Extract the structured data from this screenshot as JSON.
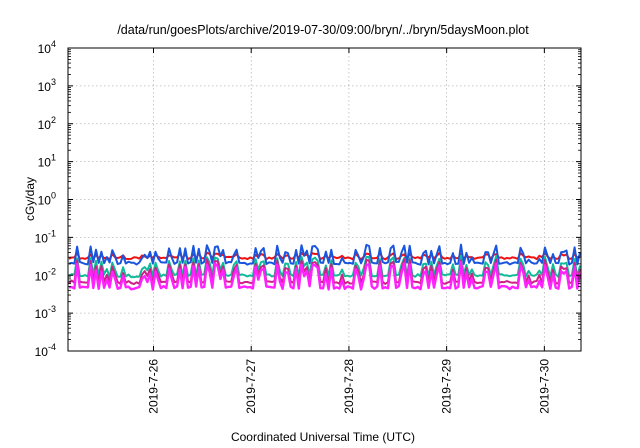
{
  "chart_data": {
    "type": "line",
    "title": "/data/run/goesPlots/archive/2019-07-30/09:00/bryn/../bryn/5daysMoon.plot",
    "xlabel": "Coordinated Universal Time (UTC)",
    "ylabel": "cGy/day",
    "y_scale": "log",
    "ylim": [
      0.0001,
      10000
    ],
    "y_ticks": [
      {
        "base": "10",
        "exp": "-4",
        "value": 0.0001
      },
      {
        "base": "10",
        "exp": "-3",
        "value": 0.001
      },
      {
        "base": "10",
        "exp": "-2",
        "value": 0.01
      },
      {
        "base": "10",
        "exp": "-1",
        "value": 0.1
      },
      {
        "base": "10",
        "exp": "0",
        "value": 1
      },
      {
        "base": "10",
        "exp": "1",
        "value": 10
      },
      {
        "base": "10",
        "exp": "2",
        "value": 100
      },
      {
        "base": "10",
        "exp": "3",
        "value": 1000
      },
      {
        "base": "10",
        "exp": "4",
        "value": 10000
      }
    ],
    "xlim": [
      "2019-07-25T03:00",
      "2019-07-30T09:00"
    ],
    "x_ticks": [
      {
        "label": "2019-7-26",
        "value": "2019-07-26T00:00"
      },
      {
        "label": "2019-7-27",
        "value": "2019-07-27T00:00"
      },
      {
        "label": "2019-7-28",
        "value": "2019-07-28T00:00"
      },
      {
        "label": "2019-7-29",
        "value": "2019-07-29T00:00"
      },
      {
        "label": "2019-7-30",
        "value": "2019-07-30T00:00"
      }
    ],
    "grid": true,
    "series": [
      {
        "color": "#ee1111",
        "base": 0.028,
        "spike": 0.045
      },
      {
        "color": "#1a55dd",
        "base": 0.02,
        "spike": 0.06
      },
      {
        "color": "#11bb99",
        "base": 0.0095,
        "spike": 0.03
      },
      {
        "color": "#cc2288",
        "base": 0.0062,
        "spike": 0.025
      },
      {
        "color": "#ff22ff",
        "base": 0.0045,
        "spike": 0.02
      }
    ]
  }
}
